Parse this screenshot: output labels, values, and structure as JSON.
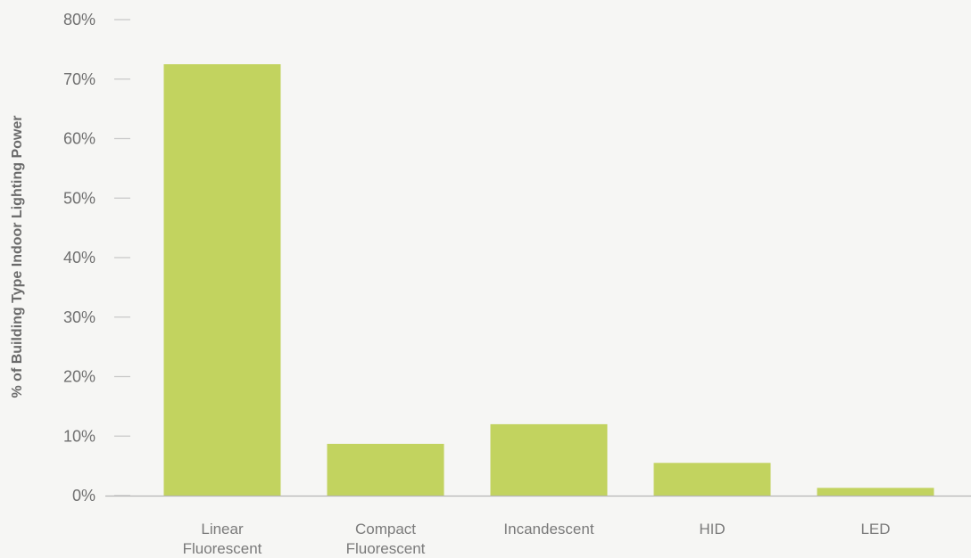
{
  "chart_data": {
    "type": "bar",
    "title": "",
    "xlabel": "",
    "ylabel": "% of Building Type Indoor Lighting Power",
    "ylim": [
      0,
      80
    ],
    "yticks": [
      0,
      10,
      20,
      30,
      40,
      50,
      60,
      70,
      80
    ],
    "ytick_labels": [
      "0%",
      "10%",
      "20%",
      "30%",
      "40%",
      "50%",
      "60%",
      "70%",
      "80%"
    ],
    "categories": [
      [
        "Linear",
        "Fluorescent"
      ],
      [
        "Compact",
        "Fluorescent"
      ],
      [
        "Incandescent"
      ],
      [
        "HID"
      ],
      [
        "LED"
      ]
    ],
    "values": [
      72.5,
      8.7,
      12.0,
      5.5,
      1.3
    ],
    "grid": false,
    "legend": "none",
    "colors": {
      "bar": "#c2d35f",
      "baseline": "#b5b5b5",
      "tick": "#c8c8c8",
      "text": "#6f6f6f",
      "background": "#f6f6f4"
    }
  }
}
